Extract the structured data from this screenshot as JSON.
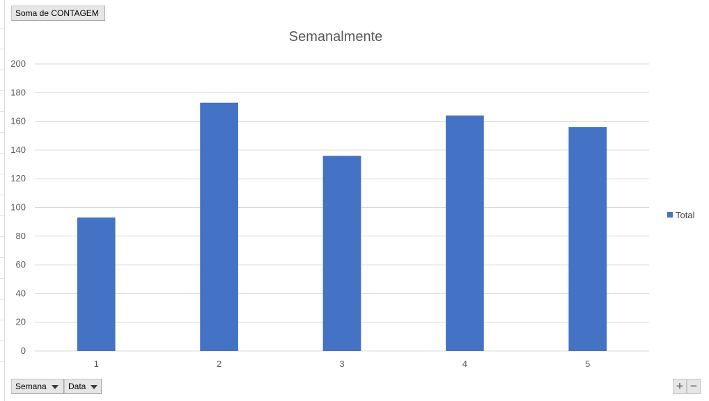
{
  "pivot_buttons": {
    "value_field": "Soma de CONTAGEM",
    "axis_fields": [
      "Semana",
      "Data"
    ]
  },
  "zoom": {
    "plus": "+",
    "minus": "−"
  },
  "colors": {
    "bar": "#4472C4",
    "grid": "#d9d9d9",
    "text": "#595959"
  },
  "chart_data": {
    "type": "bar",
    "title": "Semanalmente",
    "categories": [
      "1",
      "2",
      "3",
      "4",
      "5"
    ],
    "series": [
      {
        "name": "Total",
        "values": [
          93,
          173,
          136,
          164,
          156
        ]
      }
    ],
    "ylim": [
      0,
      200
    ],
    "yticks": [
      0,
      20,
      40,
      60,
      80,
      100,
      120,
      140,
      160,
      180,
      200
    ],
    "grid": true,
    "legend_position": "right"
  }
}
